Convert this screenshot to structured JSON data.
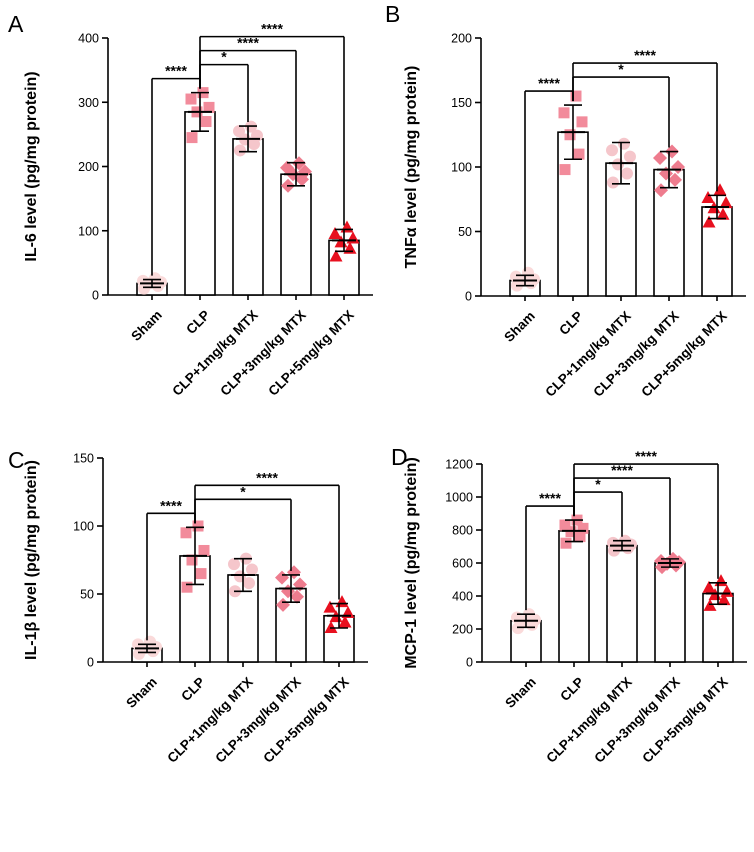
{
  "chart_data": [
    {
      "type": "bar",
      "panel": "A",
      "title": "",
      "xlabel": "",
      "ylabel": "IL-6 level (pg/mg protein)",
      "ylim": [
        0,
        400
      ],
      "yticks": [
        0,
        100,
        200,
        300,
        400
      ],
      "categories": [
        "Sham",
        "CLP",
        "CLP+1mg/kg MTX",
        "CLP+3mg/kg MTX",
        "CLP+5mg/kg MTX"
      ],
      "values": [
        18,
        285,
        243,
        188,
        85
      ],
      "errors": [
        6,
        30,
        20,
        18,
        17
      ],
      "points": [
        [
          10,
          14,
          18,
          20,
          22,
          26
        ],
        [
          245,
          270,
          285,
          292,
          305,
          315
        ],
        [
          225,
          235,
          242,
          248,
          255,
          262
        ],
        [
          170,
          180,
          188,
          192,
          198,
          205
        ],
        [
          60,
          72,
          82,
          88,
          95,
          105
        ]
      ],
      "markers": [
        "circle",
        "square",
        "circle",
        "diamond",
        "triangle"
      ],
      "colors": [
        "#fadada",
        "#f28b9b",
        "#f5c6cb",
        "#ee7c8e",
        "#e8101f"
      ],
      "significance": [
        {
          "from": 0,
          "to": 1,
          "label": "****"
        },
        {
          "from": 1,
          "to": 2,
          "label": "*"
        },
        {
          "from": 1,
          "to": 3,
          "label": "****"
        },
        {
          "from": 1,
          "to": 4,
          "label": "****"
        }
      ]
    },
    {
      "type": "bar",
      "panel": "B",
      "title": "",
      "xlabel": "",
      "ylabel": "TNFα level (pg/mg protein)",
      "ylim": [
        0,
        200
      ],
      "yticks": [
        0,
        50,
        100,
        150,
        200
      ],
      "categories": [
        "Sham",
        "CLP",
        "CLP+1mg/kg MTX",
        "CLP+3mg/kg MTX",
        "CLP+5mg/kg MTX"
      ],
      "values": [
        12,
        127,
        103,
        98,
        69
      ],
      "errors": [
        4,
        21,
        16,
        14,
        9
      ],
      "points": [
        [
          8,
          10,
          12,
          13,
          15,
          18
        ],
        [
          98,
          110,
          125,
          135,
          142,
          155
        ],
        [
          88,
          95,
          102,
          108,
          113,
          118
        ],
        [
          82,
          90,
          95,
          100,
          107,
          112
        ],
        [
          57,
          63,
          68,
          72,
          76,
          82
        ]
      ],
      "markers": [
        "circle",
        "square",
        "circle",
        "diamond",
        "triangle"
      ],
      "colors": [
        "#fadada",
        "#f28b9b",
        "#f5c6cb",
        "#ee7c8e",
        "#e8101f"
      ],
      "significance": [
        {
          "from": 0,
          "to": 1,
          "label": "****"
        },
        {
          "from": 1,
          "to": 3,
          "label": "*"
        },
        {
          "from": 1,
          "to": 4,
          "label": "****"
        }
      ]
    },
    {
      "type": "bar",
      "panel": "C",
      "title": "",
      "xlabel": "",
      "ylabel": "IL-1β level (pg/mg protein)",
      "ylim": [
        0,
        150
      ],
      "yticks": [
        0,
        50,
        100,
        150
      ],
      "categories": [
        "Sham",
        "CLP",
        "CLP+1mg/kg MTX",
        "CLP+3mg/kg MTX",
        "CLP+5mg/kg MTX"
      ],
      "values": [
        10,
        78,
        64,
        54,
        34
      ],
      "errors": [
        3,
        21,
        12,
        10,
        9
      ],
      "points": [
        [
          6,
          8,
          10,
          11,
          13,
          15
        ],
        [
          55,
          65,
          75,
          82,
          95,
          100
        ],
        [
          52,
          58,
          63,
          68,
          72,
          76
        ],
        [
          42,
          48,
          52,
          57,
          62,
          66
        ],
        [
          25,
          29,
          33,
          36,
          40,
          44
        ]
      ],
      "markers": [
        "circle",
        "square",
        "circle",
        "diamond",
        "triangle"
      ],
      "colors": [
        "#fadada",
        "#f28b9b",
        "#f5c6cb",
        "#ee7c8e",
        "#e8101f"
      ],
      "significance": [
        {
          "from": 0,
          "to": 1,
          "label": "****"
        },
        {
          "from": 1,
          "to": 3,
          "label": "*"
        },
        {
          "from": 1,
          "to": 4,
          "label": "****"
        }
      ]
    },
    {
      "type": "bar",
      "panel": "D",
      "title": "",
      "xlabel": "",
      "ylabel": "MCP-1 level (pg/mg protein)",
      "ylim": [
        0,
        1200
      ],
      "yticks": [
        0,
        200,
        400,
        600,
        800,
        1000,
        1200
      ],
      "categories": [
        "Sham",
        "CLP",
        "CLP+1mg/kg MTX",
        "CLP+3mg/kg MTX",
        "CLP+5mg/kg MTX"
      ],
      "values": [
        250,
        795,
        705,
        600,
        415
      ],
      "errors": [
        40,
        65,
        30,
        25,
        65
      ],
      "points": [
        [
          205,
          225,
          245,
          255,
          270,
          290
        ],
        [
          720,
          760,
          790,
          810,
          830,
          860
        ],
        [
          675,
          690,
          705,
          712,
          722,
          735
        ],
        [
          575,
          585,
          595,
          605,
          612,
          625
        ],
        [
          340,
          375,
          405,
          425,
          450,
          490
        ]
      ],
      "markers": [
        "circle",
        "square",
        "circle",
        "diamond",
        "triangle"
      ],
      "colors": [
        "#fadada",
        "#f28b9b",
        "#f5c6cb",
        "#ee7c8e",
        "#e8101f"
      ],
      "significance": [
        {
          "from": 0,
          "to": 1,
          "label": "****"
        },
        {
          "from": 1,
          "to": 2,
          "label": "*"
        },
        {
          "from": 1,
          "to": 3,
          "label": "****"
        },
        {
          "from": 1,
          "to": 4,
          "label": "****"
        }
      ]
    }
  ]
}
